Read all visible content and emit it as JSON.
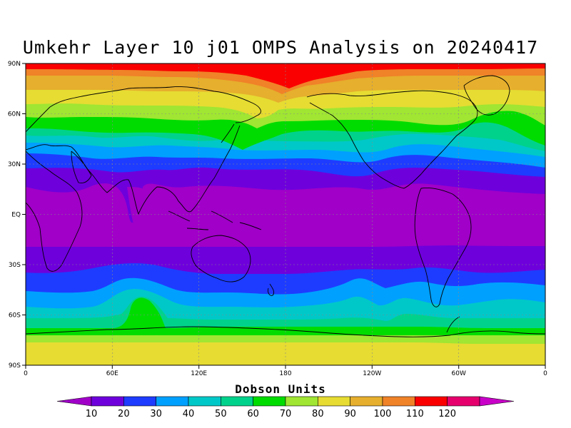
{
  "title": "Umkehr Layer 10 j01 OMPS Analysis on 20240417",
  "lat_labels": [
    "90N",
    "60N",
    "30N",
    "EQ",
    "30S",
    "60S",
    "90S"
  ],
  "lon_labels": [
    "0",
    "60E",
    "120E",
    "180",
    "120W",
    "60W",
    "0"
  ],
  "colorbar": {
    "title": "Dobson Units",
    "levels": [
      "10",
      "20",
      "30",
      "40",
      "50",
      "60",
      "70",
      "80",
      "90",
      "100",
      "110",
      "120"
    ],
    "colors": [
      "#a000c8",
      "#6e00dc",
      "#1e3cff",
      "#00a0ff",
      "#00c8c8",
      "#00d28c",
      "#00dc00",
      "#a0e632",
      "#e6dc32",
      "#e6af2d",
      "#f08228",
      "#fa0000",
      "#e6006e",
      "#c800c8"
    ]
  },
  "chart_data": {
    "type": "heatmap",
    "title": "Umkehr Layer 10 j01 OMPS Analysis on 20240417",
    "xlabel": "",
    "ylabel": "",
    "x_range": [
      0,
      360
    ],
    "y_range": [
      -90,
      90
    ],
    "units": "Dobson Units",
    "levels": [
      10,
      20,
      30,
      40,
      50,
      60,
      70,
      80,
      90,
      100,
      110,
      120
    ],
    "zonal_profile": [
      {
        "lat": 85,
        "value": 115
      },
      {
        "lat": 75,
        "value": 100
      },
      {
        "lat": 65,
        "value": 85
      },
      {
        "lat": 55,
        "value": 70
      },
      {
        "lat": 45,
        "value": 55
      },
      {
        "lat": 37,
        "value": 40
      },
      {
        "lat": 30,
        "value": 25
      },
      {
        "lat": 15,
        "value": 12
      },
      {
        "lat": 0,
        "value": 10
      },
      {
        "lat": -15,
        "value": 12
      },
      {
        "lat": -25,
        "value": 18
      },
      {
        "lat": -35,
        "value": 25
      },
      {
        "lat": -45,
        "value": 35
      },
      {
        "lat": -55,
        "value": 55
      },
      {
        "lat": -62,
        "value": 65
      },
      {
        "lat": -70,
        "value": 78
      },
      {
        "lat": -80,
        "value": 88
      }
    ]
  }
}
